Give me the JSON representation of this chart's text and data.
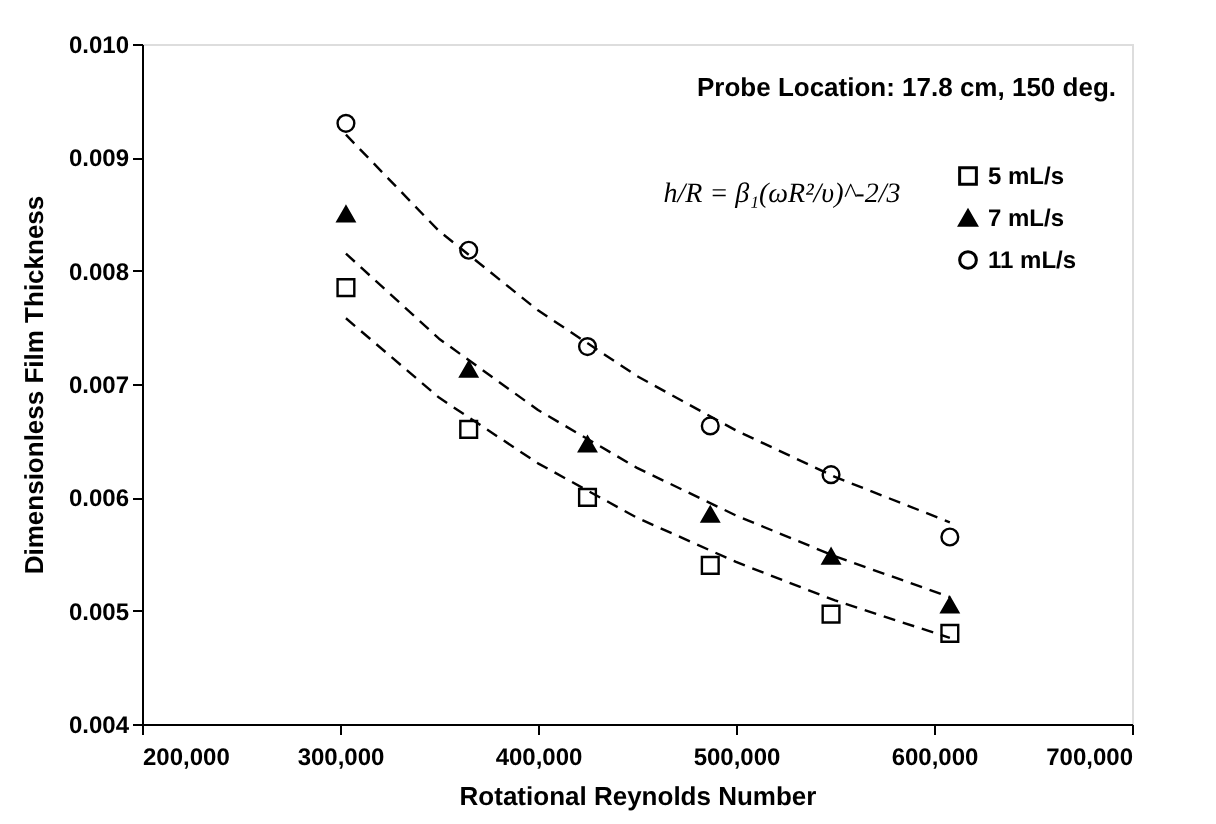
{
  "chart_data": {
    "type": "scatter",
    "xlabel": "Rotational Reynolds Number",
    "ylabel": "Dimensionless Film Thickness",
    "annotations": [
      "Probe Location: 17.8 cm, 150 deg.",
      "h/R = β₁(ωR²/υ)^-2/3"
    ],
    "x": [
      303000,
      365000,
      425000,
      487000,
      548000,
      608000
    ],
    "series": [
      {
        "name": "5 mL/s",
        "color": "#000000",
        "marker": "square",
        "values": [
          0.00785,
          0.0066,
          0.006,
          0.0054,
          0.00497,
          0.0048
        ]
      },
      {
        "name": "7 mL/s",
        "color": "#000000",
        "marker": "triangle",
        "values": [
          0.0085,
          0.00713,
          0.00647,
          0.00585,
          0.00548,
          0.00505
        ]
      },
      {
        "name": "11 mL/s",
        "color": "#000000",
        "marker": "circle",
        "values": [
          0.0093,
          0.00818,
          0.00733,
          0.00663,
          0.0062,
          0.00565
        ]
      },
      {
        "type": "line",
        "color": "#000000",
        "line_style": "dashed",
        "marker": "none",
        "x": [
          303000,
          350000,
          400000,
          450000,
          500000,
          550000,
          608000
        ],
        "values": [
          0.00758,
          0.00688,
          0.0063,
          0.00582,
          0.00543,
          0.00509,
          0.00476
        ]
      },
      {
        "type": "line",
        "color": "#000000",
        "line_style": "dashed",
        "marker": "none",
        "x": [
          303000,
          350000,
          400000,
          450000,
          500000,
          550000,
          608000
        ],
        "values": [
          0.00815,
          0.0074,
          0.00677,
          0.00626,
          0.00584,
          0.00548,
          0.00512
        ]
      },
      {
        "type": "line",
        "color": "#000000",
        "line_style": "dashed",
        "marker": "none",
        "x": [
          303000,
          350000,
          400000,
          450000,
          500000,
          550000,
          608000
        ],
        "values": [
          0.0092,
          0.00835,
          0.00765,
          0.00707,
          0.00659,
          0.00618,
          0.00578
        ]
      }
    ],
    "xlim": [
      200000,
      700000
    ],
    "xticks": [
      {
        "value": 200000,
        "label": "200,000"
      },
      {
        "value": 300000,
        "label": "300,000"
      },
      {
        "value": 400000,
        "label": "400,000"
      },
      {
        "value": 500000,
        "label": "500,000"
      },
      {
        "value": 600000,
        "label": "600,000"
      },
      {
        "value": 700000,
        "label": "700,000"
      }
    ],
    "ylim": [
      0.004,
      0.01
    ],
    "yticks": [
      0.004,
      0.005,
      0.006,
      0.007,
      0.008,
      0.009,
      {
        "value": 0.01,
        "label": "0.010"
      }
    ],
    "grid": false,
    "legend": "right"
  }
}
